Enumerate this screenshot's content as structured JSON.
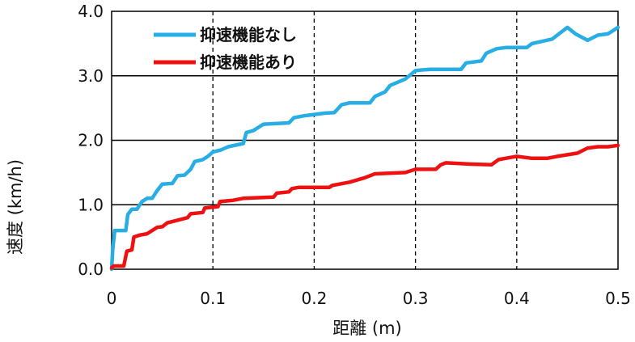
{
  "chart_data": {
    "type": "line",
    "title": "",
    "xlabel": "距離 (m)",
    "ylabel": "速度 (km/h)",
    "xlim": [
      0,
      0.5
    ],
    "ylim": [
      0,
      4.0
    ],
    "x_ticks": [
      {
        "value": 0,
        "label": "0"
      },
      {
        "value": 0.1,
        "label": "0.1"
      },
      {
        "value": 0.2,
        "label": "0.2"
      },
      {
        "value": 0.3,
        "label": "0.3"
      },
      {
        "value": 0.4,
        "label": "0.4"
      },
      {
        "value": 0.5,
        "label": "0.5"
      }
    ],
    "y_ticks": [
      {
        "value": 0,
        "label": "0.0"
      },
      {
        "value": 1,
        "label": "1.0"
      },
      {
        "value": 2,
        "label": "2.0"
      },
      {
        "value": 3,
        "label": "3.0"
      },
      {
        "value": 4,
        "label": "4.0"
      }
    ],
    "grid": {
      "horizontal": "solid",
      "vertical": "dashed"
    },
    "legend_position": "top-left",
    "series": [
      {
        "name": "抑速機能なし",
        "color": "#28AEE4",
        "points": [
          [
            0.0,
            0.0
          ],
          [
            0.001,
            0.3
          ],
          [
            0.003,
            0.6
          ],
          [
            0.014,
            0.6
          ],
          [
            0.016,
            0.85
          ],
          [
            0.02,
            0.93
          ],
          [
            0.025,
            0.93
          ],
          [
            0.03,
            1.05
          ],
          [
            0.035,
            1.1
          ],
          [
            0.04,
            1.1
          ],
          [
            0.045,
            1.22
          ],
          [
            0.05,
            1.32
          ],
          [
            0.06,
            1.33
          ],
          [
            0.065,
            1.45
          ],
          [
            0.072,
            1.46
          ],
          [
            0.078,
            1.55
          ],
          [
            0.082,
            1.67
          ],
          [
            0.09,
            1.7
          ],
          [
            0.095,
            1.75
          ],
          [
            0.1,
            1.82
          ],
          [
            0.108,
            1.85
          ],
          [
            0.115,
            1.9
          ],
          [
            0.13,
            1.95
          ],
          [
            0.133,
            2.12
          ],
          [
            0.14,
            2.15
          ],
          [
            0.145,
            2.2
          ],
          [
            0.15,
            2.25
          ],
          [
            0.175,
            2.27
          ],
          [
            0.18,
            2.35
          ],
          [
            0.19,
            2.38
          ],
          [
            0.2,
            2.4
          ],
          [
            0.21,
            2.42
          ],
          [
            0.22,
            2.43
          ],
          [
            0.227,
            2.55
          ],
          [
            0.235,
            2.58
          ],
          [
            0.255,
            2.58
          ],
          [
            0.26,
            2.68
          ],
          [
            0.27,
            2.75
          ],
          [
            0.275,
            2.85
          ],
          [
            0.29,
            2.95
          ],
          [
            0.3,
            3.08
          ],
          [
            0.305,
            3.09
          ],
          [
            0.315,
            3.1
          ],
          [
            0.345,
            3.1
          ],
          [
            0.35,
            3.2
          ],
          [
            0.365,
            3.23
          ],
          [
            0.37,
            3.35
          ],
          [
            0.38,
            3.42
          ],
          [
            0.39,
            3.44
          ],
          [
            0.41,
            3.44
          ],
          [
            0.415,
            3.5
          ],
          [
            0.435,
            3.57
          ],
          [
            0.45,
            3.75
          ],
          [
            0.458,
            3.65
          ],
          [
            0.47,
            3.55
          ],
          [
            0.48,
            3.63
          ],
          [
            0.49,
            3.65
          ],
          [
            0.5,
            3.75
          ]
        ]
      },
      {
        "name": "抑速機能あり",
        "color": "#EE1111",
        "points": [
          [
            0.0,
            0.02
          ],
          [
            0.002,
            0.05
          ],
          [
            0.012,
            0.05
          ],
          [
            0.015,
            0.28
          ],
          [
            0.02,
            0.3
          ],
          [
            0.022,
            0.5
          ],
          [
            0.028,
            0.53
          ],
          [
            0.035,
            0.55
          ],
          [
            0.04,
            0.6
          ],
          [
            0.045,
            0.65
          ],
          [
            0.05,
            0.66
          ],
          [
            0.055,
            0.72
          ],
          [
            0.065,
            0.76
          ],
          [
            0.075,
            0.8
          ],
          [
            0.078,
            0.86
          ],
          [
            0.09,
            0.88
          ],
          [
            0.092,
            0.95
          ],
          [
            0.105,
            0.97
          ],
          [
            0.107,
            1.05
          ],
          [
            0.12,
            1.07
          ],
          [
            0.13,
            1.1
          ],
          [
            0.16,
            1.12
          ],
          [
            0.163,
            1.18
          ],
          [
            0.175,
            1.2
          ],
          [
            0.178,
            1.25
          ],
          [
            0.185,
            1.27
          ],
          [
            0.215,
            1.27
          ],
          [
            0.218,
            1.3
          ],
          [
            0.235,
            1.35
          ],
          [
            0.25,
            1.42
          ],
          [
            0.26,
            1.48
          ],
          [
            0.29,
            1.5
          ],
          [
            0.3,
            1.55
          ],
          [
            0.32,
            1.55
          ],
          [
            0.325,
            1.62
          ],
          [
            0.33,
            1.65
          ],
          [
            0.355,
            1.63
          ],
          [
            0.375,
            1.62
          ],
          [
            0.382,
            1.7
          ],
          [
            0.4,
            1.75
          ],
          [
            0.415,
            1.72
          ],
          [
            0.43,
            1.72
          ],
          [
            0.44,
            1.75
          ],
          [
            0.46,
            1.8
          ],
          [
            0.47,
            1.88
          ],
          [
            0.48,
            1.9
          ],
          [
            0.49,
            1.9
          ],
          [
            0.5,
            1.92
          ]
        ]
      }
    ]
  }
}
